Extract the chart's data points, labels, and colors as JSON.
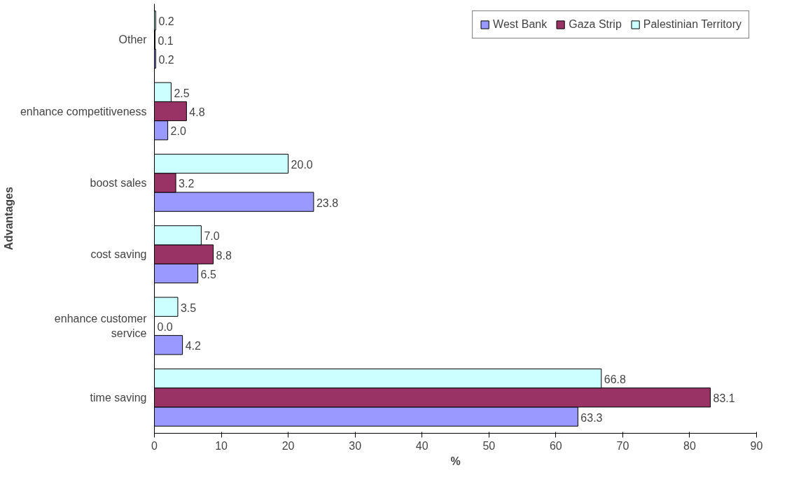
{
  "chart_data": {
    "type": "bar",
    "orientation": "horizontal",
    "xlabel": "%",
    "ylabel": "Advantages",
    "categories": [
      "Other",
      "enhance competitiveness",
      "boost sales",
      "cost saving",
      "enhance customer service",
      "time saving"
    ],
    "series": [
      {
        "name": "West Bank",
        "color": "#9999ff",
        "values": [
          0.2,
          2.0,
          23.8,
          6.5,
          4.2,
          63.3
        ],
        "value_labels": [
          "0.2",
          "2.0",
          "23.8",
          "6.5",
          "4.2",
          "63.3"
        ]
      },
      {
        "name": "Gaza Strip",
        "color": "#993366",
        "values": [
          0.1,
          4.8,
          3.2,
          8.8,
          0.0,
          83.1
        ],
        "value_labels": [
          "0.1",
          "4.8",
          "3.2",
          "8.8",
          "0.0",
          "83.1"
        ]
      },
      {
        "name": "Palestinian Territory",
        "color": "#ccffff",
        "values": [
          0.2,
          2.5,
          20.0,
          7.0,
          3.5,
          66.8
        ],
        "value_labels": [
          "0.2",
          "2.5",
          "20.0",
          "7.0",
          "3.5",
          "66.8"
        ]
      }
    ],
    "xlim": [
      0,
      90
    ],
    "xticks": [
      0,
      10,
      20,
      30,
      40,
      50,
      60,
      70,
      80,
      90
    ],
    "grid": false,
    "legend": "top right"
  }
}
